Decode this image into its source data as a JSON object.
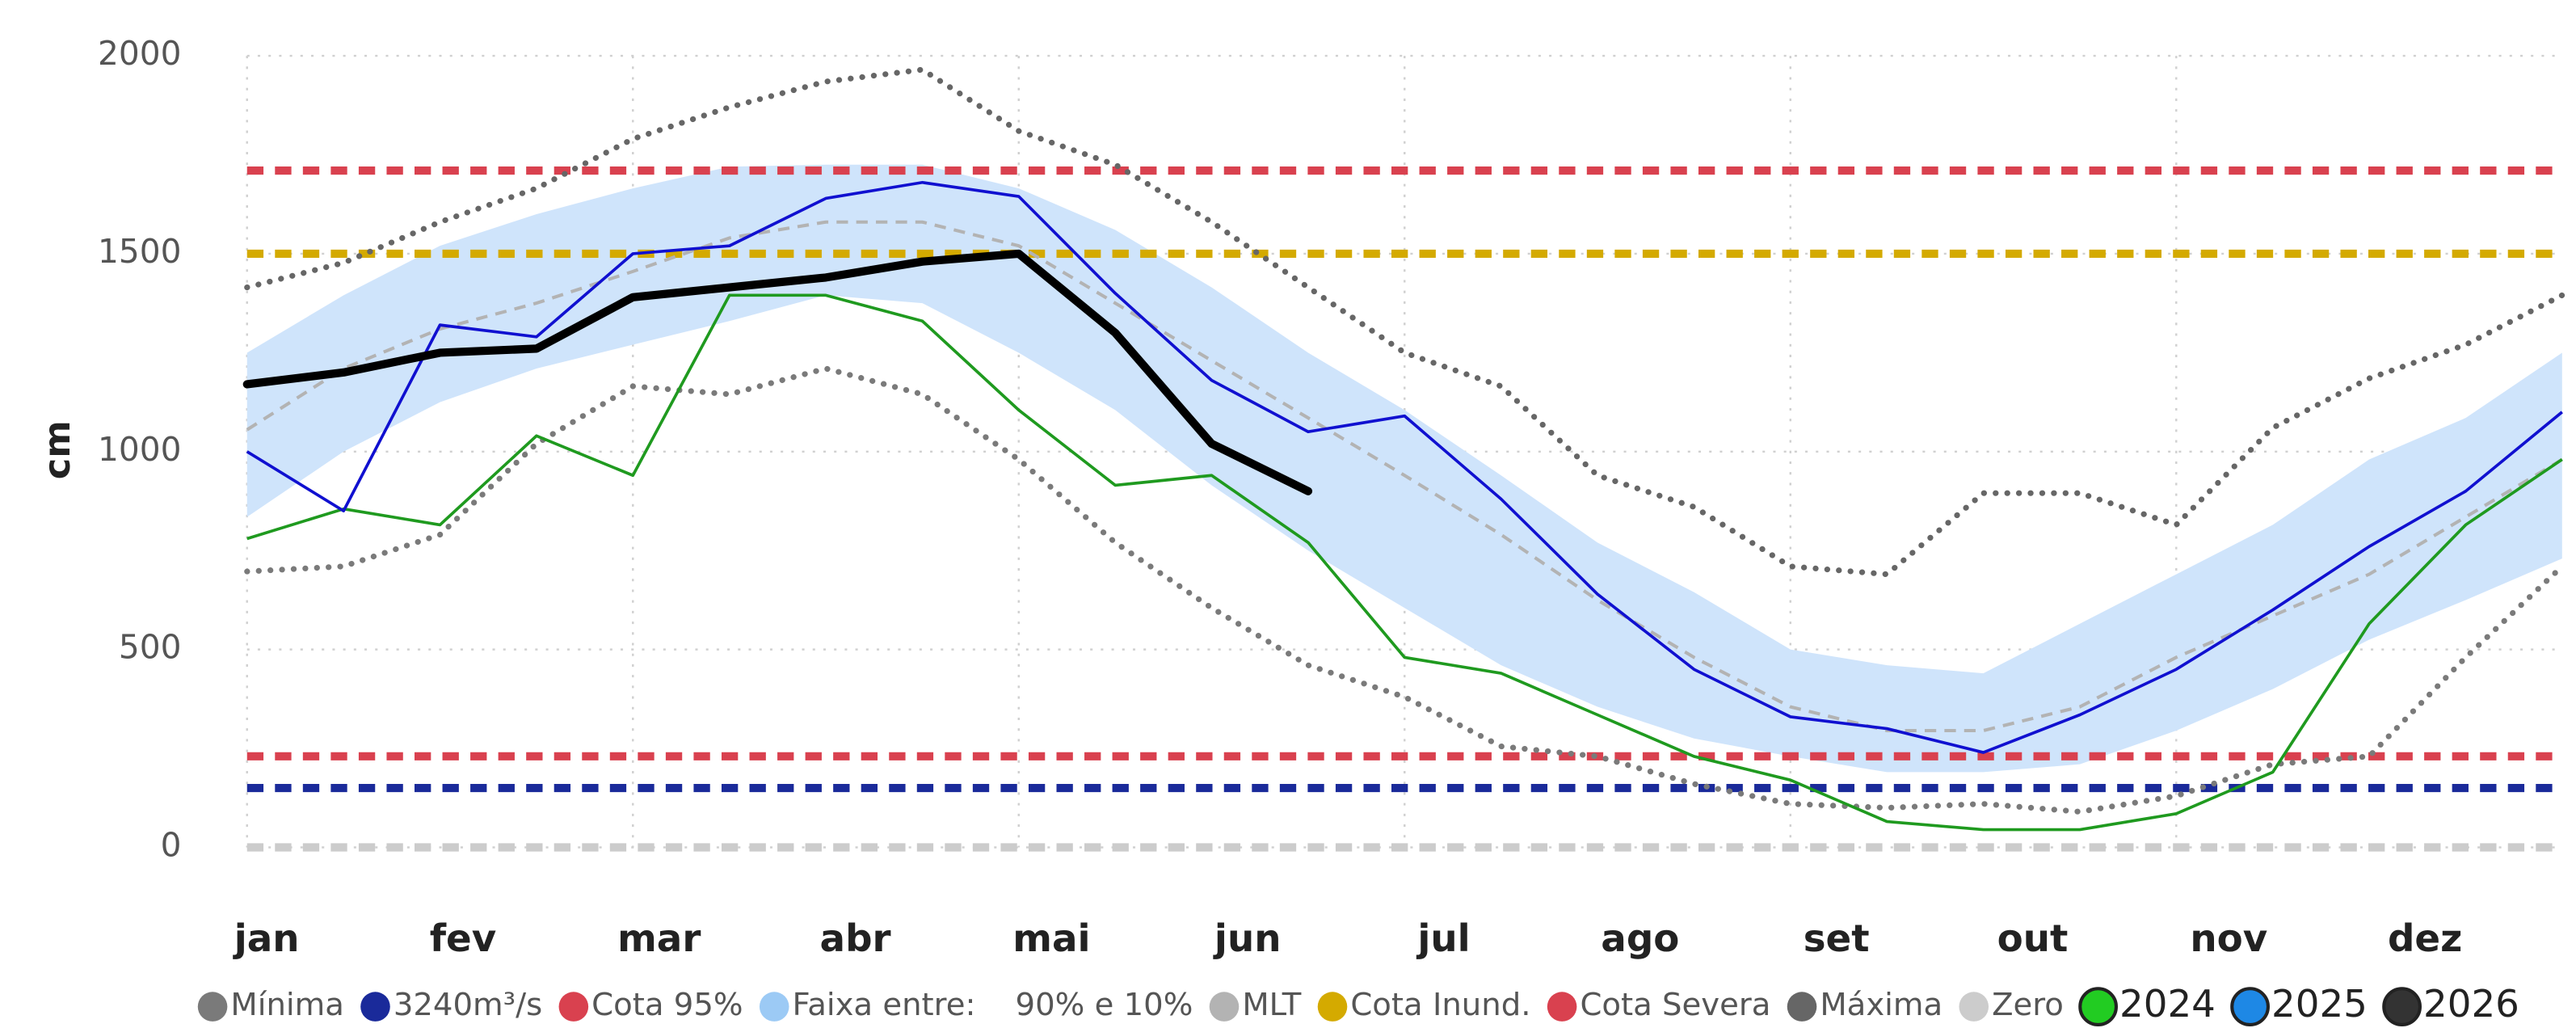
{
  "chart_data": {
    "type": "line",
    "y_label": "cm",
    "categories": [
      "jan",
      null,
      "fev",
      null,
      "mar",
      null,
      "abr",
      null,
      "mai",
      null,
      "jun",
      null,
      "jul",
      null,
      "ago",
      null,
      "set",
      null,
      "out",
      null,
      "nov",
      null,
      "dez",
      null,
      null
    ],
    "ylim": [
      0,
      2000
    ],
    "yticks": [
      0,
      500,
      1000,
      1500,
      2000
    ],
    "grid": true,
    "series": [
      {
        "name": "Mínima",
        "style": "dotted",
        "color": "#7a7a7a",
        "values": [
          697,
          710,
          790,
          1020,
          1165,
          1145,
          1210,
          1145,
          980,
          770,
          605,
          460,
          380,
          255,
          230,
          160,
          110,
          100,
          110,
          90,
          130,
          210,
          230,
          480,
          710
        ]
      },
      {
        "name": "3240m³/s",
        "style": "hline",
        "color": "#1a2a9a",
        "value": 150
      },
      {
        "name": "Cota 95%",
        "style": "hline",
        "color": "#d9414f",
        "value": 1710
      },
      {
        "name": "Faixa entre:    90% e 10%",
        "style": "band",
        "color": "#cfe4fb",
        "high": [
          1250,
          1395,
          1520,
          1600,
          1665,
          1720,
          1725,
          1725,
          1665,
          1560,
          1415,
          1250,
          1105,
          940,
          770,
          645,
          500,
          460,
          440,
          565,
          690,
          815,
          980,
          1085,
          1250
        ],
        "low": [
          835,
          1000,
          1125,
          1210,
          1270,
          1330,
          1395,
          1375,
          1250,
          1105,
          915,
          750,
          605,
          460,
          355,
          275,
          230,
          190,
          190,
          210,
          295,
          400,
          525,
          625,
          730
        ]
      },
      {
        "name": "MLT",
        "style": "dashed",
        "color": "#b3b3b3",
        "values": [
          1055,
          1210,
          1310,
          1375,
          1455,
          1540,
          1580,
          1580,
          1520,
          1375,
          1230,
          1085,
          940,
          790,
          625,
          480,
          355,
          295,
          295,
          355,
          480,
          585,
          690,
          835,
          980
        ]
      },
      {
        "name": "Cota Inund.",
        "style": "hline",
        "color": "#d4aa00",
        "value": 1500
      },
      {
        "name": "Cota Severa",
        "style": "hline",
        "color": "#d9414f",
        "value": 230
      },
      {
        "name": "Máxima",
        "style": "dotted",
        "color": "#666666",
        "values": [
          1415,
          1477,
          1580,
          1665,
          1790,
          1870,
          1935,
          1965,
          1810,
          1725,
          1580,
          1415,
          1250,
          1165,
          940,
          860,
          710,
          690,
          895,
          895,
          815,
          1060,
          1185,
          1270,
          1395
        ]
      },
      {
        "name": "Zero",
        "style": "hline",
        "color": "#cccccc",
        "value": 0
      },
      {
        "name": "2024",
        "style": "line",
        "color": "#1f9a1f",
        "marker": "#22cc22",
        "values": [
          780,
          855,
          815,
          1040,
          940,
          1395,
          1395,
          1330,
          1105,
          915,
          940,
          770,
          480,
          440,
          335,
          230,
          170,
          65,
          45,
          45,
          85,
          190,
          565,
          815,
          980
        ]
      },
      {
        "name": "2025",
        "style": "line",
        "color": "#1010d0",
        "marker": "#1e88e5",
        "values": [
          1000,
          850,
          1320,
          1290,
          1500,
          1520,
          1640,
          1680,
          1645,
          1400,
          1180,
          1050,
          1090,
          880,
          640,
          450,
          330,
          300,
          240,
          335,
          450,
          600,
          760,
          900,
          1100
        ]
      },
      {
        "name": "2026",
        "style": "bold",
        "color": "#000000",
        "marker": "#333333",
        "values": [
          1170,
          1200,
          1250,
          1260,
          1390,
          1415,
          1440,
          1480,
          1500,
          1300,
          1020,
          900,
          null,
          null,
          null,
          null,
          null,
          null,
          null,
          null,
          null,
          null,
          null,
          null,
          null
        ]
      }
    ]
  }
}
